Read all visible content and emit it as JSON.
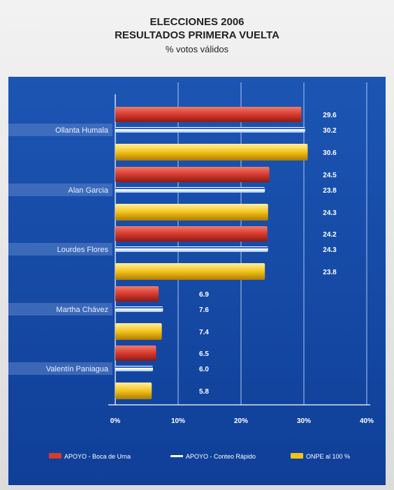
{
  "header": {
    "title_line1": "ELECCIONES 2006",
    "title_line2": "RESULTADOS PRIMERA VUELTA",
    "subtitle": "% votos válidos"
  },
  "colors": {
    "apoyo_boca": "#d63a2f",
    "apoyo_conteo": "#1e4fae",
    "onpe": "#f2c21a",
    "panel": "#1a4fae"
  },
  "chart_data": {
    "type": "bar",
    "orientation": "horizontal",
    "title": "ELECCIONES 2006 RESULTADOS PRIMERA VUELTA",
    "subtitle": "% votos válidos",
    "categories": [
      "Ollanta Humala",
      "Alan Garcia",
      "Lourdes Flores",
      "Martha Chávez",
      "Valentín Paniagua"
    ],
    "series": [
      {
        "name": "APOYO - Boca de Urna",
        "values": [
          29.6,
          24.5,
          24.2,
          6.9,
          6.5
        ],
        "color": "#d63a2f"
      },
      {
        "name": "APOYO - Conteo Rápido",
        "values": [
          30.2,
          23.8,
          24.3,
          7.6,
          6.0
        ],
        "color": "#1e4fae"
      },
      {
        "name": "ONPE al 100 %",
        "values": [
          30.6,
          24.3,
          23.8,
          7.4,
          5.8
        ],
        "color": "#f2c21a"
      }
    ],
    "value_labels": [
      [
        "29.6",
        "30.2",
        "30.6"
      ],
      [
        "24.5",
        "23.8",
        "24.3"
      ],
      [
        "24.2",
        "24.3",
        "23.8"
      ],
      [
        "6.9",
        "7.6",
        "7.4"
      ],
      [
        "6.5",
        "6.0",
        "5.8"
      ]
    ],
    "xticks": [
      0,
      10,
      20,
      30,
      40
    ],
    "xtick_labels": [
      "0%",
      "10%",
      "20%",
      "30%",
      "40%"
    ],
    "xlim": [
      0,
      40
    ],
    "grid": true,
    "legend_position": "bottom"
  }
}
